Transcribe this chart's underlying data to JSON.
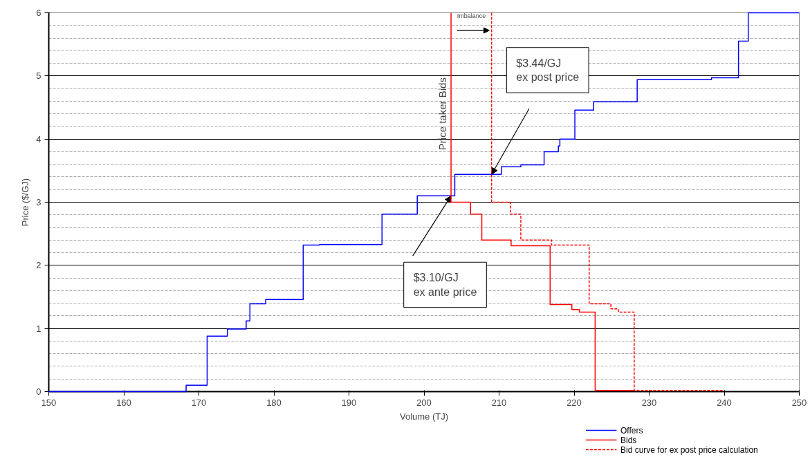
{
  "chart_data": {
    "type": "step",
    "xlabel": "Volume (TJ)",
    "ylabel": "Price ($/GJ)",
    "xlim": [
      150,
      250
    ],
    "xticks": [
      150,
      160,
      170,
      180,
      190,
      200,
      210,
      220,
      230,
      240,
      250
    ],
    "ylim": [
      0,
      6
    ],
    "yticks": [
      0,
      1,
      2,
      3,
      4,
      5,
      6
    ],
    "grid": "y",
    "legend": "bottom right",
    "line_style": "solid",
    "series": [
      {
        "name": "Offers",
        "color": "#0000ff",
        "x": [
          150,
          168.3,
          171.1,
          173.8,
          176.3,
          176.8,
          178.9,
          183.9,
          186.1,
          194.4,
          199.1,
          204.1,
          210.3,
          212.9,
          216.0,
          217.9,
          218.1,
          220.1,
          222.6,
          228.4,
          238.3,
          241.9,
          243.2,
          250
        ],
        "values": [
          0,
          0.1,
          0.88,
          0.99,
          1.12,
          1.39,
          1.46,
          2.32,
          2.33,
          2.81,
          3.1,
          3.44,
          3.56,
          3.59,
          3.8,
          3.89,
          4.0,
          4.46,
          4.59,
          4.94,
          4.97,
          5.55,
          6,
          6
        ]
      },
      {
        "name": "Bids",
        "color": "#ff0000",
        "x": [
          203.6,
          203.6,
          206.2,
          207.7,
          211.6,
          216.8,
          219.7,
          220.7,
          222.8,
          228
        ],
        "values": [
          6,
          3.0,
          2.81,
          2.4,
          2.31,
          1.38,
          1.3,
          1.26,
          0.02,
          0.02
        ]
      },
      {
        "name": "Bid curve for ex post price calculation",
        "color": "#ff0000",
        "line_style": "dashed",
        "x": [
          209,
          209,
          211.5,
          212.9,
          217.0,
          222.0,
          224.9,
          225.9,
          228.0,
          240
        ],
        "values": [
          6,
          3.0,
          2.81,
          2.4,
          2.32,
          1.39,
          1.31,
          1.26,
          0.02,
          0.02
        ]
      }
    ],
    "annotations": [
      "$3.10/GJ\nex ante price",
      "$3.44/GJ\nex post price",
      "Price taker Bids",
      "Imbalance"
    ]
  }
}
